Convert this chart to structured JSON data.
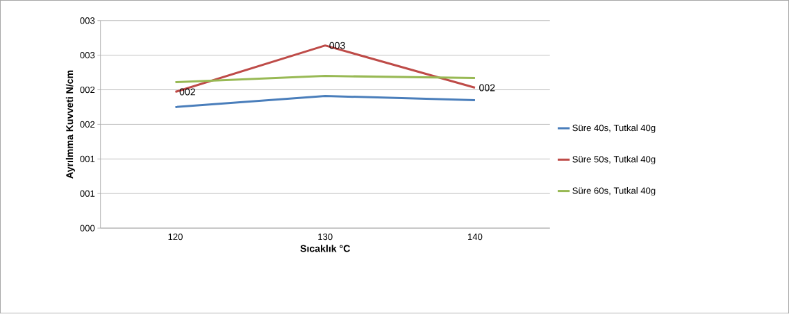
{
  "chart_data": {
    "type": "line",
    "xlabel": "Sıcaklık  °C",
    "ylabel": "Ayrılmma Kuvveti  N/cm",
    "categories": [
      "120",
      "130",
      "140"
    ],
    "series": [
      {
        "name": "Süre 40s, Tutkal 40g",
        "color": "#4a7ebb",
        "values": [
          1.75,
          1.91,
          1.85
        ]
      },
      {
        "name": "Süre 50s, Tutkal 40g",
        "color": "#be4b48",
        "values": [
          1.97,
          2.64,
          2.03
        ],
        "value_labels": [
          "002",
          "003",
          "002"
        ]
      },
      {
        "name": "Süre 60s, Tutkal 40g",
        "color": "#98b954",
        "values": [
          2.11,
          2.2,
          2.17
        ]
      }
    ],
    "ylim": [
      0,
      3
    ],
    "yticks": [
      {
        "value": 0,
        "label": "000"
      },
      {
        "value": 0.5,
        "label": "001"
      },
      {
        "value": 1,
        "label": "001"
      },
      {
        "value": 1.5,
        "label": "002"
      },
      {
        "value": 2,
        "label": "002"
      },
      {
        "value": 2.5,
        "label": "003"
      },
      {
        "value": 3,
        "label": "003"
      }
    ],
    "grid": "y",
    "legend": "right",
    "marker": "none",
    "line_style": "solid"
  }
}
